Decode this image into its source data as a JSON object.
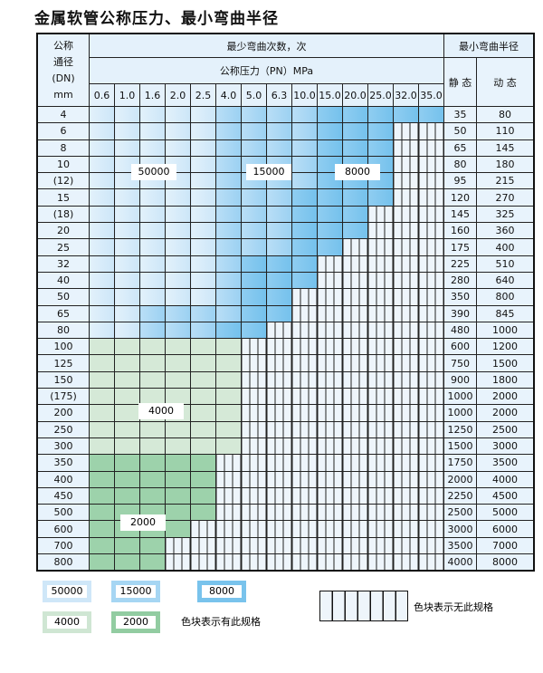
{
  "title": "金属软管公称压力、最小弯曲半径",
  "header": {
    "dn_label": [
      "公称",
      "通径",
      "(DN)",
      "mm"
    ],
    "cycles_label": "最少弯曲次数，次",
    "pressure_label": "公称压力（PN）MPa",
    "radius_label": "最小弯曲半径",
    "static_label": "静 态",
    "dynamic_label": "动 态",
    "pressures": [
      "0.6",
      "1.0",
      "1.6",
      "2.0",
      "2.5",
      "4.0",
      "5.0",
      "6.3",
      "10.0",
      "15.0",
      "20.0",
      "25.0",
      "32.0",
      "35.0"
    ]
  },
  "cell_colors": {
    "L": "#d6ebf8",
    "M": "#a8d8f5",
    "D": "#7cc6ee",
    "G": "#d5e9d7",
    "H": "#9dd2ab",
    "E": "#eef5fb"
  },
  "rows": [
    {
      "dn": "4",
      "static": "35",
      "dynamic": "80",
      "cells": "LLLLLMMMMDDDDD"
    },
    {
      "dn": "6",
      "static": "50",
      "dynamic": "110",
      "cells": "LLLLLMMMMDDD"
    },
    {
      "dn": "8",
      "static": "65",
      "dynamic": "145",
      "cells": "LLLLLMMMMDDD"
    },
    {
      "dn": "10",
      "static": "80",
      "dynamic": "180",
      "cells": "LLLLLMMMMDDD"
    },
    {
      "dn": "(12)",
      "static": "95",
      "dynamic": "215",
      "cells": "LLLLLMMMMDDD"
    },
    {
      "dn": "15",
      "static": "120",
      "dynamic": "270",
      "cells": "LLLLLMMMDDDD"
    },
    {
      "dn": "(18)",
      "static": "145",
      "dynamic": "325",
      "cells": "LLLLLMMMDDD"
    },
    {
      "dn": "20",
      "static": "160",
      "dynamic": "360",
      "cells": "LLLLLMMMDDD"
    },
    {
      "dn": "25",
      "static": "175",
      "dynamic": "400",
      "cells": "LLLLLMMMDD"
    },
    {
      "dn": "32",
      "static": "225",
      "dynamic": "510",
      "cells": "LLLLLMDDD"
    },
    {
      "dn": "40",
      "static": "280",
      "dynamic": "640",
      "cells": "LLLLLMDDD"
    },
    {
      "dn": "50",
      "static": "350",
      "dynamic": "800",
      "cells": "LLLLLMDD"
    },
    {
      "dn": "65",
      "static": "390",
      "dynamic": "845",
      "cells": "LLMMMMDD"
    },
    {
      "dn": "80",
      "static": "480",
      "dynamic": "1000",
      "cells": "LLMMMDD"
    },
    {
      "dn": "100",
      "static": "600",
      "dynamic": "1200",
      "cells": "GGGGGG"
    },
    {
      "dn": "125",
      "static": "750",
      "dynamic": "1500",
      "cells": "GGGGGG"
    },
    {
      "dn": "150",
      "static": "900",
      "dynamic": "1800",
      "cells": "GGGGGG"
    },
    {
      "dn": "(175)",
      "static": "1000",
      "dynamic": "2000",
      "cells": "GGGGGG"
    },
    {
      "dn": "200",
      "static": "1000",
      "dynamic": "2000",
      "cells": "GGGGGG"
    },
    {
      "dn": "250",
      "static": "1250",
      "dynamic": "2500",
      "cells": "GGGGGG"
    },
    {
      "dn": "300",
      "static": "1500",
      "dynamic": "3000",
      "cells": "GGGGGG"
    },
    {
      "dn": "350",
      "static": "1750",
      "dynamic": "3500",
      "cells": "HHHHH"
    },
    {
      "dn": "400",
      "static": "2000",
      "dynamic": "4000",
      "cells": "HHHHH"
    },
    {
      "dn": "450",
      "static": "2250",
      "dynamic": "4500",
      "cells": "HHHHH"
    },
    {
      "dn": "500",
      "static": "2500",
      "dynamic": "5000",
      "cells": "HHHHH"
    },
    {
      "dn": "600",
      "static": "3000",
      "dynamic": "6000",
      "cells": "HHHH"
    },
    {
      "dn": "700",
      "static": "3500",
      "dynamic": "7000",
      "cells": "HHH"
    },
    {
      "dn": "800",
      "static": "4000",
      "dynamic": "8000",
      "cells": "HHH"
    }
  ],
  "region_labels": {
    "a": "50000",
    "b": "15000",
    "c": "8000",
    "d": "4000",
    "e": "2000"
  },
  "legend": {
    "items": [
      {
        "label": "50000",
        "color": "#cfe7f8"
      },
      {
        "label": "15000",
        "color": "#a6d6f3"
      },
      {
        "label": "8000",
        "color": "#79c3ec"
      },
      {
        "label": "4000",
        "color": "#cfe6d3"
      },
      {
        "label": "2000",
        "color": "#92cca1"
      }
    ],
    "has_spec_text": "色块表示有此规格",
    "no_spec_text": "色块表示无此规格"
  }
}
